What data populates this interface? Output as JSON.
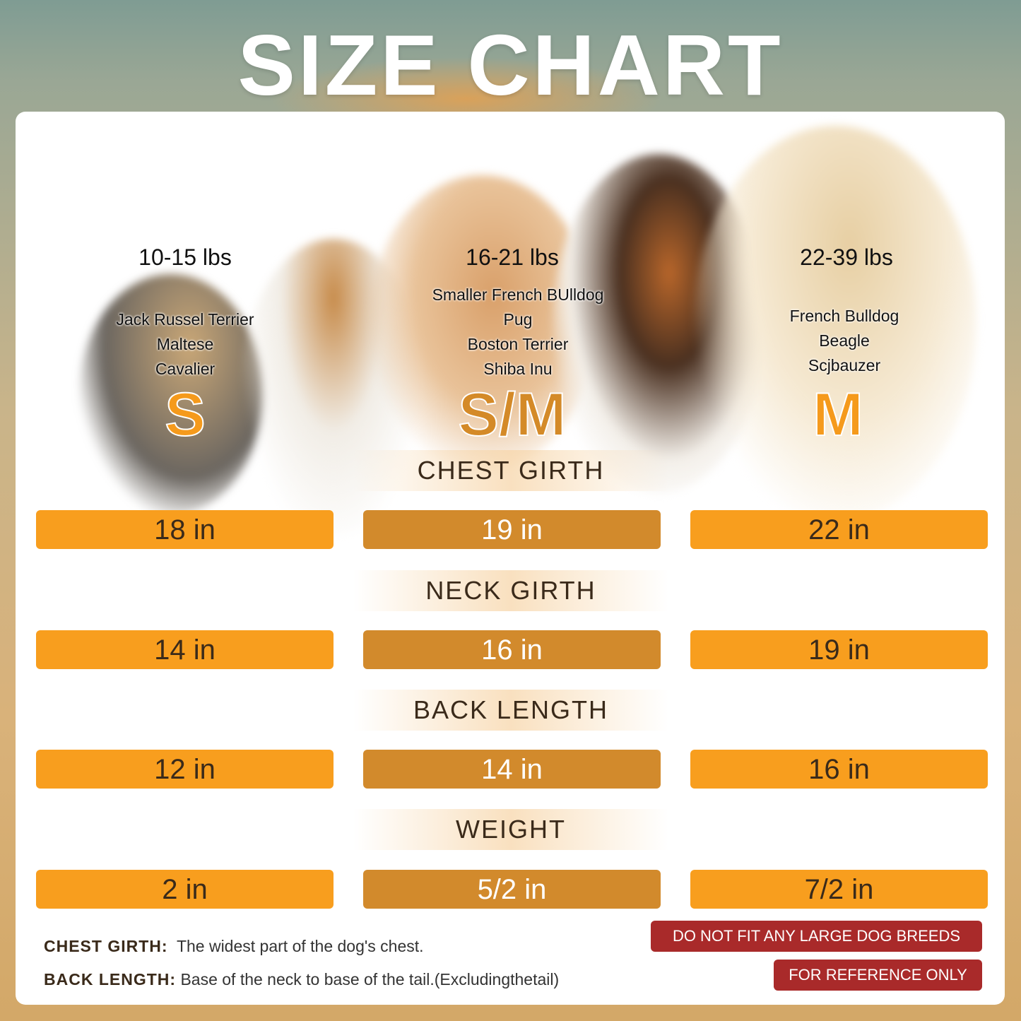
{
  "title": "SIZE CHART",
  "sizes": [
    {
      "size": "S",
      "weight": "10-15 lbs",
      "breeds": [
        "Jack Russel Terrier",
        "Maltese",
        "Cavalier"
      ]
    },
    {
      "size": "S/M",
      "weight": "16-21 lbs",
      "breeds": [
        "Smaller French BUlldog",
        "Pug",
        "Boston Terrier",
        "Shiba Inu"
      ]
    },
    {
      "size": "M",
      "weight": "22-39 lbs",
      "breeds": [
        "French Bulldog",
        "Beagle",
        "Scjbauzer"
      ]
    }
  ],
  "measurements": [
    {
      "label": "CHEST GIRTH",
      "values": [
        "18 in",
        "19 in",
        "22 in"
      ]
    },
    {
      "label": "NECK GIRTH",
      "values": [
        "14 in",
        "16 in",
        "19 in"
      ]
    },
    {
      "label": "BACK LENGTH",
      "values": [
        "12 in",
        "14 in",
        "16 in"
      ]
    },
    {
      "label": "WEIGHT",
      "values": [
        "2 in",
        "5/2 in",
        "7/2 in"
      ]
    }
  ],
  "notes": [
    {
      "term": "CHEST GIRTH:",
      "text": "The widest part of the dog's chest."
    },
    {
      "term": "BACK LENGTH:",
      "text": "Base of the neck to base of the tail.(Excludingthetail)"
    }
  ],
  "warnings": [
    "DO NOT FIT ANY LARGE DOG BREEDS",
    "FOR REFERENCE ONLY"
  ],
  "colors": {
    "bar_orange": "#f89e1e",
    "bar_dark": "#d28a2c",
    "size_s": "#f59a1c",
    "size_sm": "#d48a28",
    "warning": "#a92a2a"
  }
}
